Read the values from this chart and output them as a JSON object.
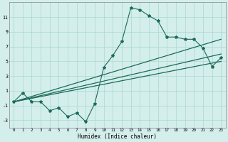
{
  "xlabel": "Humidex (Indice chaleur)",
  "bg_color": "#d4eeeb",
  "grid_color": "#a8d8d4",
  "line_color": "#1a6b5a",
  "x_data": [
    0,
    1,
    2,
    3,
    4,
    5,
    6,
    7,
    8,
    9,
    10,
    11,
    12,
    13,
    14,
    15,
    16,
    17,
    18,
    19,
    20,
    21,
    22,
    23
  ],
  "y_main": [
    -0.5,
    0.7,
    -0.5,
    -0.5,
    -1.7,
    -1.3,
    -2.5,
    -2.0,
    -3.2,
    -0.7,
    4.2,
    5.8,
    7.7,
    12.3,
    12.0,
    11.2,
    10.5,
    8.3,
    8.3,
    8.0,
    8.0,
    6.8,
    4.3,
    5.5
  ],
  "reg_line1_start": -0.5,
  "reg_line1_end": 8.0,
  "reg_line2_start": -0.5,
  "reg_line2_end": 6.0,
  "reg_line3_start": -0.5,
  "reg_line3_end": 5.0,
  "ylim": [
    -4,
    13
  ],
  "yticks": [
    -3,
    -1,
    1,
    3,
    5,
    7,
    9,
    11
  ],
  "xlim": [
    -0.5,
    23.5
  ],
  "xticks": [
    0,
    1,
    2,
    3,
    4,
    5,
    6,
    7,
    8,
    9,
    10,
    11,
    12,
    13,
    14,
    15,
    16,
    17,
    18,
    19,
    20,
    21,
    22,
    23
  ]
}
